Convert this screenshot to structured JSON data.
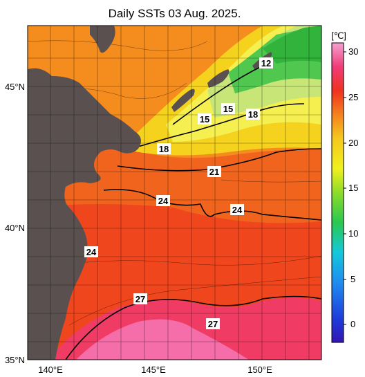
{
  "title": "Daily SSTs 03 Aug. 2025.",
  "colorbar": {
    "unit": "[℃]",
    "ticks": [
      "30",
      "25",
      "20",
      "15",
      "10",
      "5",
      "0"
    ]
  },
  "axes": {
    "x_ticks": [
      "140°E",
      "145°E",
      "150°E"
    ],
    "y_ticks": [
      "45°N",
      "40°N",
      "35°N"
    ]
  },
  "isotherm_labels": [
    "12",
    "15",
    "15",
    "18",
    "18",
    "21",
    "24",
    "24",
    "24",
    "27",
    "27"
  ],
  "colors": {
    "land": "#5a5050",
    "warm_pink": "#f36aa0",
    "red": "#f0321e",
    "orange": "#f5821e",
    "yellow": "#f5e61e",
    "green": "#3cc83c"
  }
}
